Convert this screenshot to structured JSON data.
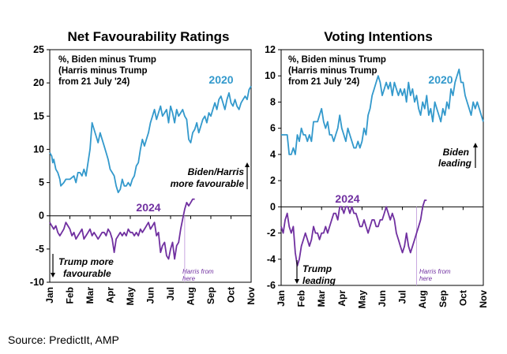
{
  "source": "Source: PredictIt, AMP",
  "colors": {
    "series_2020": "#3399cc",
    "series_2024": "#7030a0",
    "axis": "#000000",
    "cutoff_line": "#c8a8e0"
  },
  "chart_data": [
    {
      "type": "line",
      "title": "Net Favourability Ratings",
      "note_lines": [
        "%, Biden minus Trump",
        "(Harris minus Trump",
        "from 21 July '24)"
      ],
      "ylim": [
        -10,
        25
      ],
      "yticks": [
        "25",
        "20",
        "15",
        "10",
        "5",
        "0",
        "-5",
        "-10"
      ],
      "months": [
        "Jan",
        "Feb",
        "Mar",
        "Apr",
        "May",
        "Jun",
        "Jul",
        "Aug",
        "Sep",
        "Oct",
        "Nov"
      ],
      "xlim": [
        0,
        10
      ],
      "annotations": {
        "up": [
          "Biden/Harris",
          "more favourable"
        ],
        "down": [
          "Trump more",
          "favourable"
        ],
        "cutoff": [
          "Harris from",
          "here"
        ],
        "cutoff_x": 6.7
      },
      "series": [
        {
          "name": "2020",
          "x": [
            0.0,
            0.1,
            0.15,
            0.2,
            0.3,
            0.4,
            0.5,
            0.55,
            0.7,
            0.8,
            1.0,
            1.2,
            1.3,
            1.4,
            1.5,
            1.6,
            1.7,
            1.8,
            2.0,
            2.1,
            2.2,
            2.3,
            2.4,
            2.5,
            2.6,
            2.7,
            2.8,
            2.9,
            3.0,
            3.1,
            3.2,
            3.3,
            3.4,
            3.5,
            3.6,
            3.7,
            3.8,
            3.9,
            4.0,
            4.1,
            4.2,
            4.3,
            4.4,
            4.5,
            4.6,
            4.7,
            4.8,
            4.9,
            5.0,
            5.1,
            5.2,
            5.3,
            5.4,
            5.5,
            5.6,
            5.7,
            5.8,
            5.9,
            6.0,
            6.1,
            6.2,
            6.3,
            6.4,
            6.5,
            6.6,
            6.7,
            6.8,
            6.9,
            7.0,
            7.1,
            7.2,
            7.3,
            7.4,
            7.5,
            7.6,
            7.7,
            7.8,
            7.9,
            8.0,
            8.1,
            8.2,
            8.3,
            8.4,
            8.5,
            8.6,
            8.7,
            8.8,
            8.9,
            9.0,
            9.1,
            9.2,
            9.3,
            9.4,
            9.5,
            9.6,
            9.7,
            9.8,
            9.9,
            10.0
          ],
          "values": [
            9.5,
            9.0,
            8.0,
            8.5,
            7.0,
            6.5,
            5.5,
            4.5,
            5.0,
            5.5,
            5.5,
            6.0,
            5.0,
            6.5,
            6.5,
            6.0,
            7.0,
            6.0,
            10.0,
            14.0,
            13.0,
            12.0,
            11.0,
            12.5,
            11.5,
            10.5,
            9.5,
            8.5,
            7.0,
            6.5,
            6.0,
            4.5,
            3.5,
            4.0,
            5.5,
            4.5,
            4.5,
            5.0,
            4.5,
            5.5,
            6.0,
            7.5,
            8.0,
            10.0,
            11.5,
            10.5,
            11.5,
            12.5,
            14.0,
            15.0,
            16.0,
            14.5,
            15.5,
            16.5,
            15.0,
            15.5,
            16.0,
            14.0,
            16.5,
            15.5,
            14.0,
            16.0,
            15.0,
            15.5,
            16.0,
            15.0,
            14.5,
            11.5,
            11.0,
            12.5,
            13.0,
            14.0,
            12.5,
            13.5,
            14.5,
            15.0,
            14.0,
            15.5,
            15.0,
            16.0,
            17.0,
            16.0,
            17.5,
            18.0,
            17.0,
            16.0,
            17.5,
            18.5,
            17.0,
            16.5,
            17.5,
            16.5,
            16.0,
            17.0,
            17.5,
            18.0,
            17.5,
            19.0,
            19.5
          ]
        },
        {
          "name": "2024",
          "x": [
            0.0,
            0.1,
            0.2,
            0.3,
            0.4,
            0.5,
            0.6,
            0.7,
            0.8,
            0.9,
            1.0,
            1.1,
            1.2,
            1.3,
            1.4,
            1.5,
            1.6,
            1.7,
            1.8,
            1.9,
            2.0,
            2.1,
            2.2,
            2.3,
            2.4,
            2.5,
            2.6,
            2.7,
            2.8,
            2.9,
            3.0,
            3.1,
            3.2,
            3.3,
            3.4,
            3.5,
            3.6,
            3.7,
            3.8,
            3.9,
            4.0,
            4.1,
            4.2,
            4.3,
            4.4,
            4.5,
            4.6,
            4.7,
            4.8,
            4.9,
            5.0,
            5.1,
            5.2,
            5.3,
            5.4,
            5.5,
            5.6,
            5.7,
            5.8,
            5.9,
            6.0,
            6.1,
            6.2,
            6.3,
            6.4,
            6.5,
            6.6,
            6.7,
            6.8,
            6.9,
            7.0,
            7.1,
            7.2
          ],
          "values": [
            -1.0,
            -1.5,
            -2.0,
            -1.5,
            -2.5,
            -3.0,
            -2.5,
            -2.0,
            -1.0,
            -1.5,
            -2.0,
            -3.0,
            -2.5,
            -3.5,
            -3.0,
            -2.5,
            -2.0,
            -3.5,
            -3.0,
            -2.5,
            -2.0,
            -3.0,
            -2.5,
            -3.0,
            -3.5,
            -3.0,
            -2.5,
            -2.5,
            -3.0,
            -2.0,
            -2.5,
            -3.5,
            -5.5,
            -3.5,
            -3.0,
            -2.5,
            -3.0,
            -2.5,
            -3.0,
            -2.0,
            -2.5,
            -2.5,
            -3.0,
            -2.5,
            -3.0,
            -2.0,
            -2.5,
            -2.0,
            -1.5,
            -1.0,
            -2.0,
            -1.5,
            -1.0,
            -3.0,
            -2.5,
            -5.5,
            -4.5,
            -4.0,
            -6.0,
            -6.5,
            -5.0,
            -4.0,
            -6.5,
            -4.5,
            -4.0,
            -2.0,
            -0.5,
            1.0,
            2.0,
            1.5,
            2.0,
            2.5,
            2.5
          ]
        }
      ]
    },
    {
      "type": "line",
      "title": "Voting Intentions",
      "note_lines": [
        "%, Biden minus Trump",
        "(Harris minus Trump",
        "from 21 July '24)"
      ],
      "ylim": [
        -6,
        12
      ],
      "yticks": [
        "12",
        "10",
        "8",
        "6",
        "4",
        "2",
        "0",
        "-2",
        "-4",
        "-6"
      ],
      "months": [
        "Jan",
        "Feb",
        "Mar",
        "Apr",
        "May",
        "Jun",
        "Jul",
        "Aug",
        "Sep",
        "Oct",
        "Nov"
      ],
      "xlim": [
        0,
        10
      ],
      "annotations": {
        "up": [
          "Biden",
          "leading"
        ],
        "down": [
          "Trump",
          "leading"
        ],
        "cutoff": [
          "Harris from",
          "here"
        ],
        "cutoff_x": 6.7
      },
      "series": [
        {
          "name": "2020",
          "x": [
            0.0,
            0.1,
            0.2,
            0.3,
            0.4,
            0.5,
            0.6,
            0.7,
            0.8,
            0.9,
            1.0,
            1.1,
            1.2,
            1.3,
            1.4,
            1.5,
            1.6,
            1.7,
            1.8,
            1.9,
            2.0,
            2.1,
            2.2,
            2.3,
            2.4,
            2.5,
            2.6,
            2.7,
            2.8,
            2.9,
            3.0,
            3.1,
            3.2,
            3.3,
            3.4,
            3.5,
            3.6,
            3.7,
            3.8,
            3.9,
            4.0,
            4.1,
            4.2,
            4.3,
            4.4,
            4.5,
            4.6,
            4.7,
            4.8,
            4.9,
            5.0,
            5.1,
            5.2,
            5.3,
            5.4,
            5.5,
            5.6,
            5.7,
            5.8,
            5.9,
            6.0,
            6.1,
            6.2,
            6.3,
            6.4,
            6.5,
            6.6,
            6.7,
            6.8,
            6.9,
            7.0,
            7.1,
            7.2,
            7.3,
            7.4,
            7.5,
            7.6,
            7.7,
            7.8,
            7.9,
            8.0,
            8.1,
            8.2,
            8.3,
            8.4,
            8.5,
            8.6,
            8.7,
            8.8,
            8.9,
            9.0,
            9.1,
            9.2,
            9.3,
            9.4,
            9.5,
            9.6,
            9.7,
            9.8,
            9.9,
            10.0
          ],
          "values": [
            5.5,
            5.5,
            5.5,
            5.5,
            4.0,
            4.0,
            4.5,
            4.0,
            5.5,
            5.0,
            6.0,
            5.5,
            5.5,
            5.0,
            5.5,
            5.0,
            6.5,
            6.5,
            6.5,
            7.0,
            7.5,
            6.5,
            6.0,
            6.5,
            5.5,
            5.5,
            5.0,
            5.5,
            6.0,
            7.0,
            6.0,
            5.5,
            5.0,
            6.0,
            5.5,
            5.0,
            4.5,
            4.5,
            5.0,
            4.5,
            5.0,
            6.0,
            5.5,
            7.0,
            7.5,
            8.5,
            9.0,
            9.5,
            10.0,
            9.5,
            8.5,
            9.0,
            9.5,
            9.0,
            9.5,
            8.5,
            9.5,
            9.0,
            8.5,
            9.0,
            8.5,
            9.0,
            8.0,
            9.5,
            8.5,
            9.0,
            8.0,
            8.5,
            7.5,
            7.0,
            8.0,
            7.5,
            8.5,
            7.0,
            7.5,
            6.5,
            8.0,
            7.5,
            7.0,
            6.5,
            7.5,
            7.0,
            8.0,
            7.5,
            9.0,
            8.5,
            9.5,
            10.0,
            10.5,
            9.5,
            9.5,
            8.5,
            8.0,
            7.5,
            7.0,
            8.0,
            7.5,
            8.0,
            7.5,
            7.0,
            6.5
          ]
        },
        {
          "name": "2024",
          "x": [
            0.0,
            0.1,
            0.2,
            0.3,
            0.4,
            0.5,
            0.6,
            0.7,
            0.8,
            0.9,
            1.0,
            1.1,
            1.2,
            1.3,
            1.4,
            1.5,
            1.6,
            1.7,
            1.8,
            1.9,
            2.0,
            2.1,
            2.2,
            2.3,
            2.4,
            2.5,
            2.6,
            2.7,
            2.8,
            2.9,
            3.0,
            3.1,
            3.2,
            3.3,
            3.4,
            3.5,
            3.6,
            3.7,
            3.8,
            3.9,
            4.0,
            4.1,
            4.2,
            4.3,
            4.4,
            4.5,
            4.6,
            4.7,
            4.8,
            4.9,
            5.0,
            5.1,
            5.2,
            5.3,
            5.4,
            5.5,
            5.6,
            5.7,
            5.8,
            5.9,
            6.0,
            6.1,
            6.2,
            6.3,
            6.4,
            6.5,
            6.6,
            6.7,
            6.8,
            6.9,
            7.0,
            7.1,
            7.2
          ],
          "values": [
            -1.5,
            -2.0,
            -1.0,
            -0.5,
            -1.5,
            -2.0,
            -1.5,
            -3.5,
            -4.5,
            -4.0,
            -3.0,
            -2.5,
            -2.0,
            -2.5,
            -3.0,
            -2.5,
            -1.5,
            -2.0,
            -2.0,
            -2.5,
            -2.0,
            -2.0,
            -1.5,
            -2.0,
            -1.5,
            -1.0,
            -0.5,
            -0.5,
            -1.0,
            0.0,
            0.0,
            -0.5,
            0.0,
            0.0,
            -0.5,
            0.0,
            -0.5,
            -0.5,
            -1.0,
            -1.5,
            -1.5,
            -1.0,
            -1.5,
            -2.0,
            -1.5,
            -1.0,
            -1.0,
            -1.5,
            -1.5,
            -1.0,
            -1.0,
            -0.5,
            0.0,
            -0.5,
            -1.0,
            -0.5,
            -1.0,
            -2.0,
            -2.5,
            -3.0,
            -3.5,
            -3.0,
            -2.0,
            -3.0,
            -3.5,
            -3.0,
            -2.5,
            -2.0,
            -1.5,
            -1.0,
            0.0,
            0.5,
            0.5
          ]
        }
      ]
    }
  ]
}
